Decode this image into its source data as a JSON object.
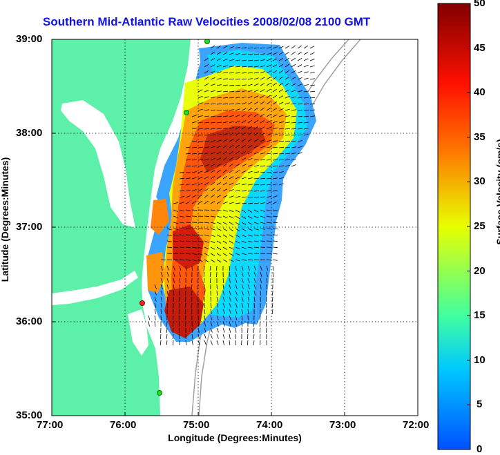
{
  "title": "Southern Mid-Atlantic Raw Velocities 2008/02/08 2100 GMT",
  "xlabel": "Longitude (Degrees:Minutes)",
  "ylabel": "Latitude (Degrees:Minutes)",
  "x_ticks": [
    "77:00",
    "76:00",
    "75:00",
    "74:00",
    "73:00",
    "72:00"
  ],
  "y_ticks": [
    "39:00",
    "38:00",
    "37:00",
    "36:00",
    "35:00"
  ],
  "colorbar": {
    "label": "Surface Velocity (cm/s)",
    "ticks": [
      "50",
      "45",
      "40",
      "35",
      "30",
      "25",
      "20",
      "15",
      "10",
      "5",
      "0"
    ],
    "range": [
      0,
      50
    ],
    "colors": [
      "#0050ff",
      "#00c8ff",
      "#40ffa0",
      "#e8ff00",
      "#ff7000",
      "#ff1000",
      "#800000"
    ]
  },
  "map": {
    "land_color": "#5df0a8",
    "x_range": [
      -77,
      -72
    ],
    "y_range": [
      35,
      39
    ]
  }
}
